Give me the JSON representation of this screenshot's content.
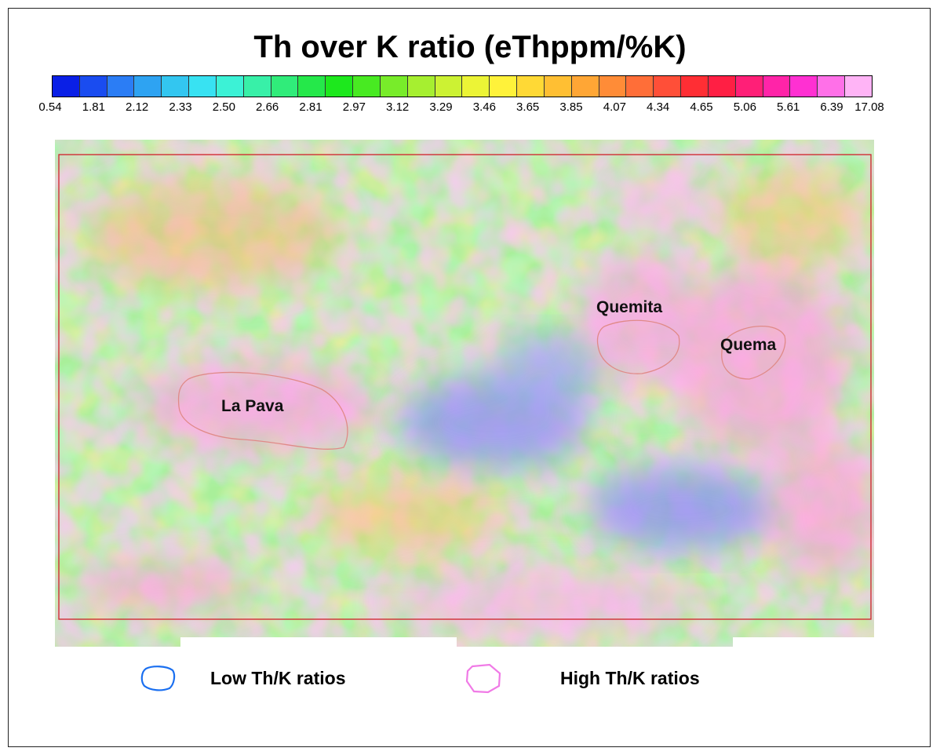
{
  "title": "Th over K ratio (eThppm/%K)",
  "colorbar": {
    "colors": [
      "#0a1fe6",
      "#1a4cf0",
      "#2b7df5",
      "#2ea3f2",
      "#33c6f0",
      "#38e2f2",
      "#3cf2d6",
      "#38f0a8",
      "#30ec7a",
      "#25e84a",
      "#1de81d",
      "#48ea22",
      "#78ec2a",
      "#a6ef30",
      "#ccf233",
      "#ecf436",
      "#fff23a",
      "#ffd935",
      "#ffbf33",
      "#ffa635",
      "#ff8c37",
      "#ff6e38",
      "#ff4f38",
      "#ff2e34",
      "#ff1f44",
      "#ff1f77",
      "#ff24a8",
      "#ff30d2",
      "#ff70e8",
      "#ffb4f6"
    ],
    "tick_labels": [
      "0.54",
      "1.81",
      "2.12",
      "2.33",
      "2.50",
      "2.66",
      "2.81",
      "2.97",
      "3.12",
      "3.29",
      "3.46",
      "3.65",
      "3.85",
      "4.07",
      "4.34",
      "4.65",
      "5.06",
      "5.61",
      "6.39",
      "17.08"
    ]
  },
  "zones": {
    "la_pava": "La Pava",
    "quemita": "Quemita",
    "quema": "Quema"
  },
  "legend": {
    "low_label": "Low Th/K ratios",
    "low_color": "#1a6ff0",
    "high_label": "High Th/K ratios",
    "high_color": "#f07ae6"
  },
  "colors": {
    "boundary": "#d0202a",
    "zone_outline": "#e08a88"
  }
}
